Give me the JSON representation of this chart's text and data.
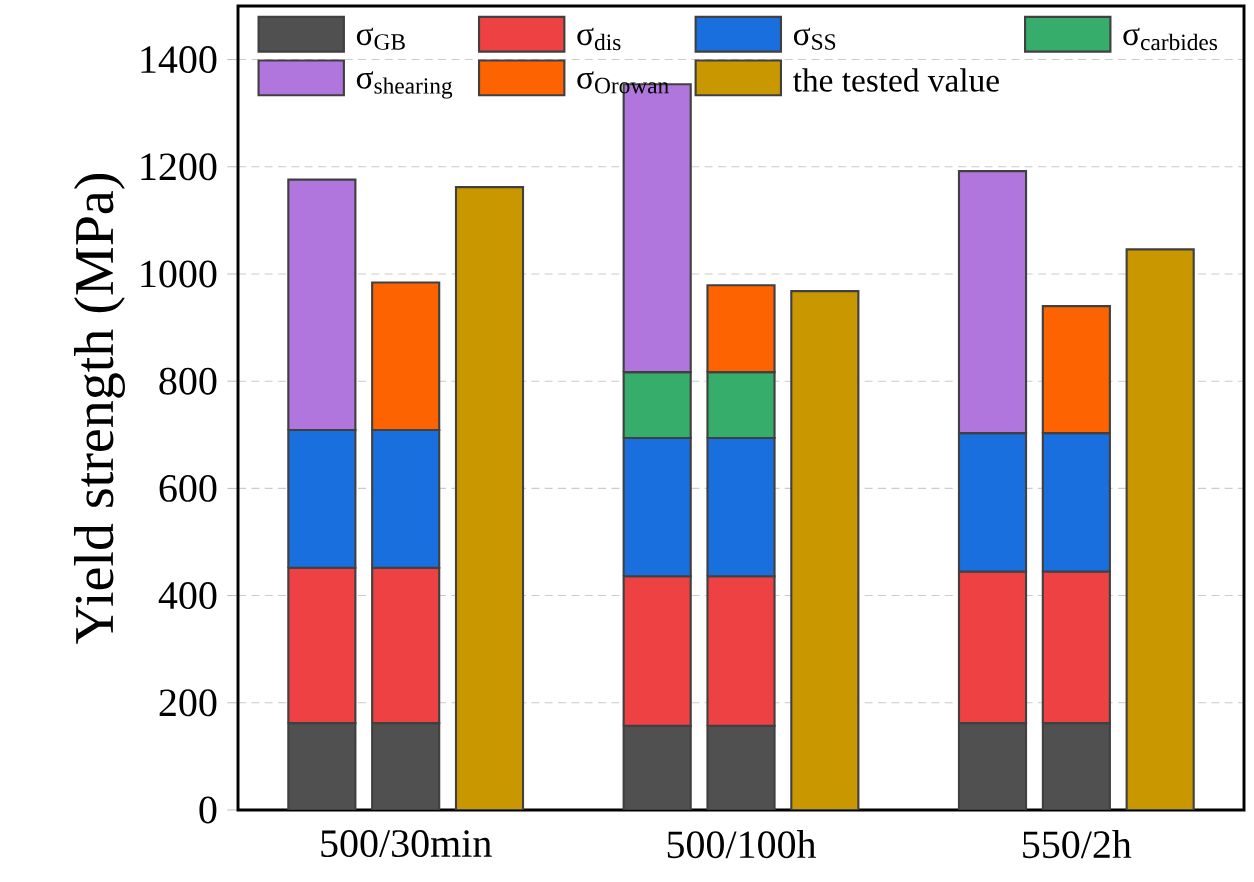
{
  "chart_data": {
    "type": "bar",
    "stacked": true,
    "ylabel": "Yield strength (MPa)",
    "categories": [
      null,
      "500/30min",
      null,
      null,
      null,
      "500/100h",
      null,
      null,
      null,
      "550/2h",
      null
    ],
    "series": [
      {
        "name": "σ$_{GB}$",
        "color": "#505050",
        "values": [
          162,
          162,
          null,
          null,
          157,
          157,
          null,
          null,
          162,
          162,
          null
        ]
      },
      {
        "name": "σ$_{dis}$",
        "color": "#ee4144",
        "values": [
          290,
          290,
          null,
          null,
          279,
          279,
          null,
          null,
          283,
          283,
          null
        ]
      },
      {
        "name": "σ$_{SS}$",
        "color": "#1a6fdf",
        "values": [
          257,
          257,
          null,
          null,
          258,
          258,
          null,
          null,
          258,
          258,
          null
        ]
      },
      {
        "name": "σ$_{carbides}$",
        "color": "#36ad6a",
        "values": [
          null,
          null,
          null,
          null,
          123,
          123,
          null,
          null,
          null,
          null,
          null
        ]
      },
      {
        "name": "σ$_{shearing}$",
        "color": "#b076de",
        "values": [
          467,
          null,
          null,
          null,
          537,
          null,
          null,
          null,
          489,
          null,
          null
        ]
      },
      {
        "name": "σ$_{Orowan}$",
        "color": "#fd6401",
        "values": [
          null,
          275,
          null,
          null,
          null,
          162,
          null,
          null,
          null,
          237,
          null
        ]
      },
      {
        "name": "the tested value",
        "color": "#c99700",
        "values": [
          null,
          null,
          1162,
          null,
          null,
          null,
          968,
          null,
          null,
          null,
          1046
        ]
      }
    ],
    "ylim": [
      0,
      1500
    ],
    "yticks": [
      0,
      200,
      400,
      600,
      800,
      1000,
      1200,
      1400
    ],
    "grid": "y",
    "legend": "top"
  }
}
